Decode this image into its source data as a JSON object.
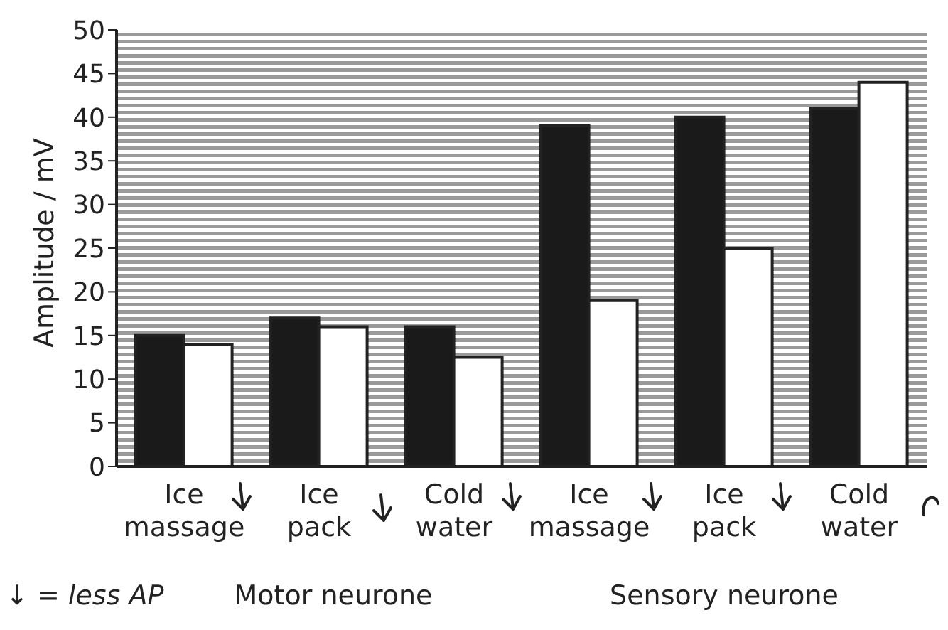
{
  "chart_data": {
    "type": "bar",
    "ylabel": "Amplitude / mV",
    "categories": [
      "Ice massage",
      "Ice pack",
      "Cold water",
      "Ice massage",
      "Ice pack",
      "Cold water"
    ],
    "series": [
      {
        "color": "#1a1a1a",
        "values": [
          15,
          17,
          16,
          39,
          40,
          41
        ]
      },
      {
        "color": "#ffffff",
        "values": [
          14,
          16,
          12.5,
          19,
          25,
          44
        ]
      }
    ],
    "ylim": [
      0,
      50
    ],
    "yticks": [
      0,
      5,
      10,
      15,
      20,
      25,
      30,
      35,
      40,
      45,
      50
    ],
    "annotations": [
      "↓ = less AP",
      "Motor neurone",
      "Sensory neurone"
    ]
  }
}
